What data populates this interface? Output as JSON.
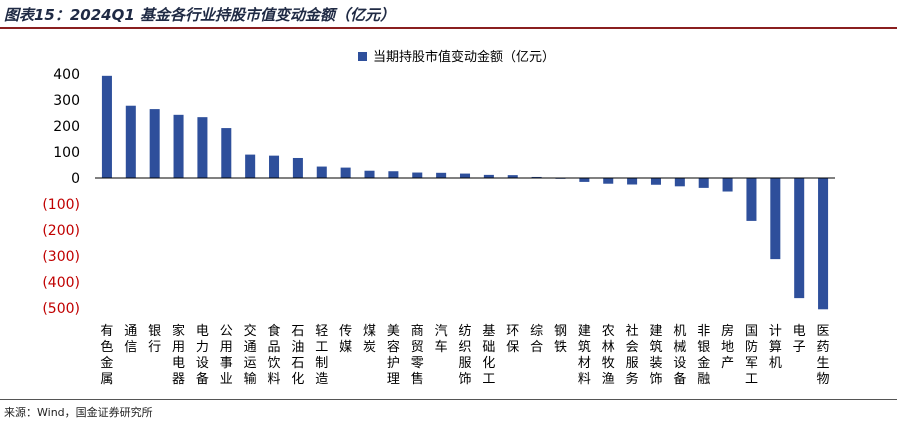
{
  "title": "图表15：2024Q1 基金各行业持股市值变动金额（亿元）",
  "source": "来源：Wind，国金证券研究所",
  "colors": {
    "bar": "#2e4f9b",
    "negative_tick": "#c00000",
    "positive_tick": "#000000",
    "title_rule": "#8a1f1f"
  },
  "chart_data": {
    "type": "bar",
    "title": "",
    "xlabel": "",
    "ylabel": "",
    "legend": {
      "position": "top",
      "entries": [
        "当期持股市值变动金额（亿元）"
      ]
    },
    "ylim": [
      -500,
      400
    ],
    "yticks": [
      400,
      300,
      200,
      100,
      0,
      -100,
      -200,
      -300,
      -400,
      -500
    ],
    "ytick_labels": [
      "400",
      "300",
      "200",
      "100",
      "0",
      "(100)",
      "(200)",
      "(300)",
      "(400)",
      "(500)"
    ],
    "grid": false,
    "categories": [
      "有色金属",
      "通信",
      "银行",
      "家用电器",
      "电力设备",
      "公用事业",
      "交通运输",
      "食品饮料",
      "石油石化",
      "轻工制造",
      "传媒",
      "煤炭",
      "美容护理",
      "商贸零售",
      "汽车",
      "纺织服饰",
      "基础化工",
      "环保",
      "综合",
      "钢铁",
      "建筑材料",
      "农林牧渔",
      "社会服务",
      "建筑装饰",
      "机械设备",
      "非银金融",
      "房地产",
      "国防军工",
      "计算机",
      "电子",
      "医药生物"
    ],
    "series": [
      {
        "name": "当期持股市值变动金额（亿元）",
        "values": [
          393,
          278,
          265,
          243,
          234,
          192,
          90,
          86,
          77,
          44,
          40,
          28,
          26,
          21,
          20,
          17,
          12,
          11,
          4,
          -3,
          -15,
          -22,
          -25,
          -26,
          -32,
          -38,
          -52,
          -165,
          -312,
          -462,
          -505
        ]
      }
    ]
  }
}
